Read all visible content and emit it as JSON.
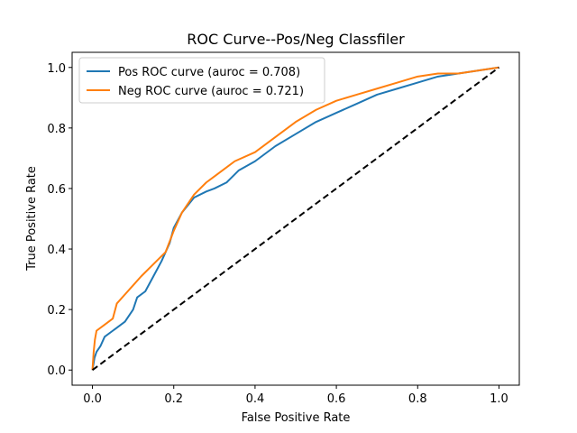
{
  "chart_data": {
    "type": "line",
    "title": "ROC Curve--Pos/Neg Classfiler",
    "xlabel": "False Positive Rate",
    "ylabel": "True Positive Rate",
    "xlim": [
      -0.05,
      1.05
    ],
    "ylim": [
      -0.05,
      1.05
    ],
    "xticks": [
      "0.0",
      "0.2",
      "0.4",
      "0.6",
      "0.8",
      "1.0"
    ],
    "yticks": [
      "0.0",
      "0.2",
      "0.4",
      "0.6",
      "0.8",
      "1.0"
    ],
    "grid": false,
    "legend_position": "top-left",
    "series": [
      {
        "name": "Pos ROC curve (auroc = 0.708)",
        "color": "#1f77b4",
        "points": [
          [
            0.0,
            0.0
          ],
          [
            0.005,
            0.04
          ],
          [
            0.01,
            0.06
          ],
          [
            0.02,
            0.08
          ],
          [
            0.03,
            0.11
          ],
          [
            0.05,
            0.13
          ],
          [
            0.08,
            0.16
          ],
          [
            0.1,
            0.2
          ],
          [
            0.11,
            0.24
          ],
          [
            0.13,
            0.26
          ],
          [
            0.15,
            0.31
          ],
          [
            0.17,
            0.36
          ],
          [
            0.19,
            0.42
          ],
          [
            0.2,
            0.47
          ],
          [
            0.22,
            0.52
          ],
          [
            0.25,
            0.57
          ],
          [
            0.28,
            0.59
          ],
          [
            0.3,
            0.6
          ],
          [
            0.33,
            0.62
          ],
          [
            0.36,
            0.66
          ],
          [
            0.4,
            0.69
          ],
          [
            0.45,
            0.74
          ],
          [
            0.5,
            0.78
          ],
          [
            0.55,
            0.82
          ],
          [
            0.6,
            0.85
          ],
          [
            0.65,
            0.88
          ],
          [
            0.7,
            0.91
          ],
          [
            0.75,
            0.93
          ],
          [
            0.8,
            0.95
          ],
          [
            0.85,
            0.97
          ],
          [
            0.9,
            0.98
          ],
          [
            0.95,
            0.99
          ],
          [
            1.0,
            1.0
          ]
        ]
      },
      {
        "name": "Neg ROC curve (auroc = 0.721)",
        "color": "#ff7f0e",
        "points": [
          [
            0.0,
            0.0
          ],
          [
            0.003,
            0.06
          ],
          [
            0.006,
            0.1
          ],
          [
            0.01,
            0.13
          ],
          [
            0.03,
            0.15
          ],
          [
            0.05,
            0.17
          ],
          [
            0.06,
            0.22
          ],
          [
            0.08,
            0.25
          ],
          [
            0.1,
            0.28
          ],
          [
            0.12,
            0.31
          ],
          [
            0.15,
            0.35
          ],
          [
            0.18,
            0.39
          ],
          [
            0.2,
            0.46
          ],
          [
            0.22,
            0.52
          ],
          [
            0.25,
            0.58
          ],
          [
            0.28,
            0.62
          ],
          [
            0.3,
            0.64
          ],
          [
            0.35,
            0.69
          ],
          [
            0.4,
            0.72
          ],
          [
            0.45,
            0.77
          ],
          [
            0.5,
            0.82
          ],
          [
            0.55,
            0.86
          ],
          [
            0.6,
            0.89
          ],
          [
            0.65,
            0.91
          ],
          [
            0.7,
            0.93
          ],
          [
            0.75,
            0.95
          ],
          [
            0.8,
            0.97
          ],
          [
            0.85,
            0.98
          ],
          [
            0.9,
            0.98
          ],
          [
            0.95,
            0.99
          ],
          [
            1.0,
            1.0
          ]
        ]
      },
      {
        "name": "",
        "color": "#000000",
        "dashed": true,
        "points": [
          [
            0.0,
            0.0
          ],
          [
            1.0,
            1.0
          ]
        ]
      }
    ]
  }
}
